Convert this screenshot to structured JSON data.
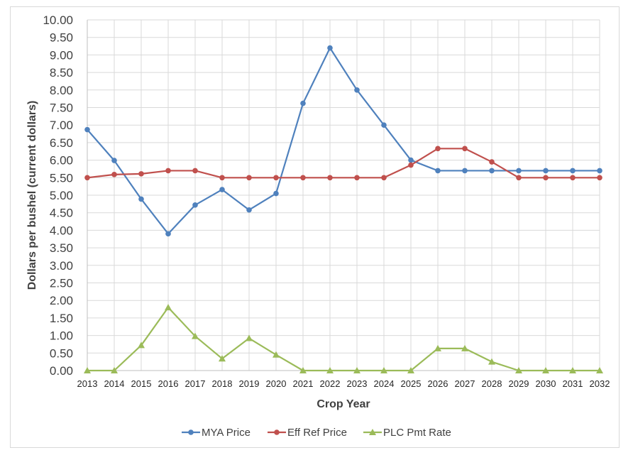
{
  "chart_data": {
    "type": "line",
    "title": "",
    "xlabel": "Crop Year",
    "ylabel": "Dollars per bushel (current dollars)",
    "ylim": [
      0,
      10
    ],
    "y_ticks": [
      "0.00",
      "0.50",
      "1.00",
      "1.50",
      "2.00",
      "2.50",
      "3.00",
      "3.50",
      "4.00",
      "4.50",
      "5.00",
      "5.50",
      "6.00",
      "6.50",
      "7.00",
      "7.50",
      "8.00",
      "8.50",
      "9.00",
      "9.50",
      "10.00"
    ],
    "grid": true,
    "legend_position": "bottom",
    "categories": [
      "2013",
      "2014",
      "2015",
      "2016",
      "2017",
      "2018",
      "2019",
      "2020",
      "2021",
      "2022",
      "2023",
      "2024",
      "2025",
      "2026",
      "2027",
      "2028",
      "2029",
      "2030",
      "2031",
      "2032"
    ],
    "series": [
      {
        "name": "MYA Price",
        "color": "#4f81bd",
        "marker": "circle",
        "values": [
          6.87,
          5.99,
          4.89,
          3.9,
          4.72,
          5.16,
          4.58,
          5.05,
          7.62,
          9.2,
          8.0,
          7.0,
          6.0,
          5.7,
          5.7,
          5.7,
          5.7,
          5.7,
          5.7,
          5.7
        ]
      },
      {
        "name": "Eff Ref Price",
        "color": "#c0504d",
        "marker": "circle",
        "values": [
          5.5,
          5.59,
          5.61,
          5.7,
          5.7,
          5.5,
          5.5,
          5.5,
          5.5,
          5.5,
          5.5,
          5.5,
          5.86,
          6.33,
          6.33,
          5.95,
          5.5,
          5.5,
          5.5,
          5.5
        ]
      },
      {
        "name": "PLC Pmt Rate",
        "color": "#9bbb59",
        "marker": "triangle",
        "values": [
          0.0,
          0.0,
          0.72,
          1.8,
          0.98,
          0.34,
          0.92,
          0.45,
          0.0,
          0.0,
          0.0,
          0.0,
          0.0,
          0.63,
          0.63,
          0.25,
          0.0,
          0.0,
          0.0,
          0.0
        ]
      }
    ]
  }
}
